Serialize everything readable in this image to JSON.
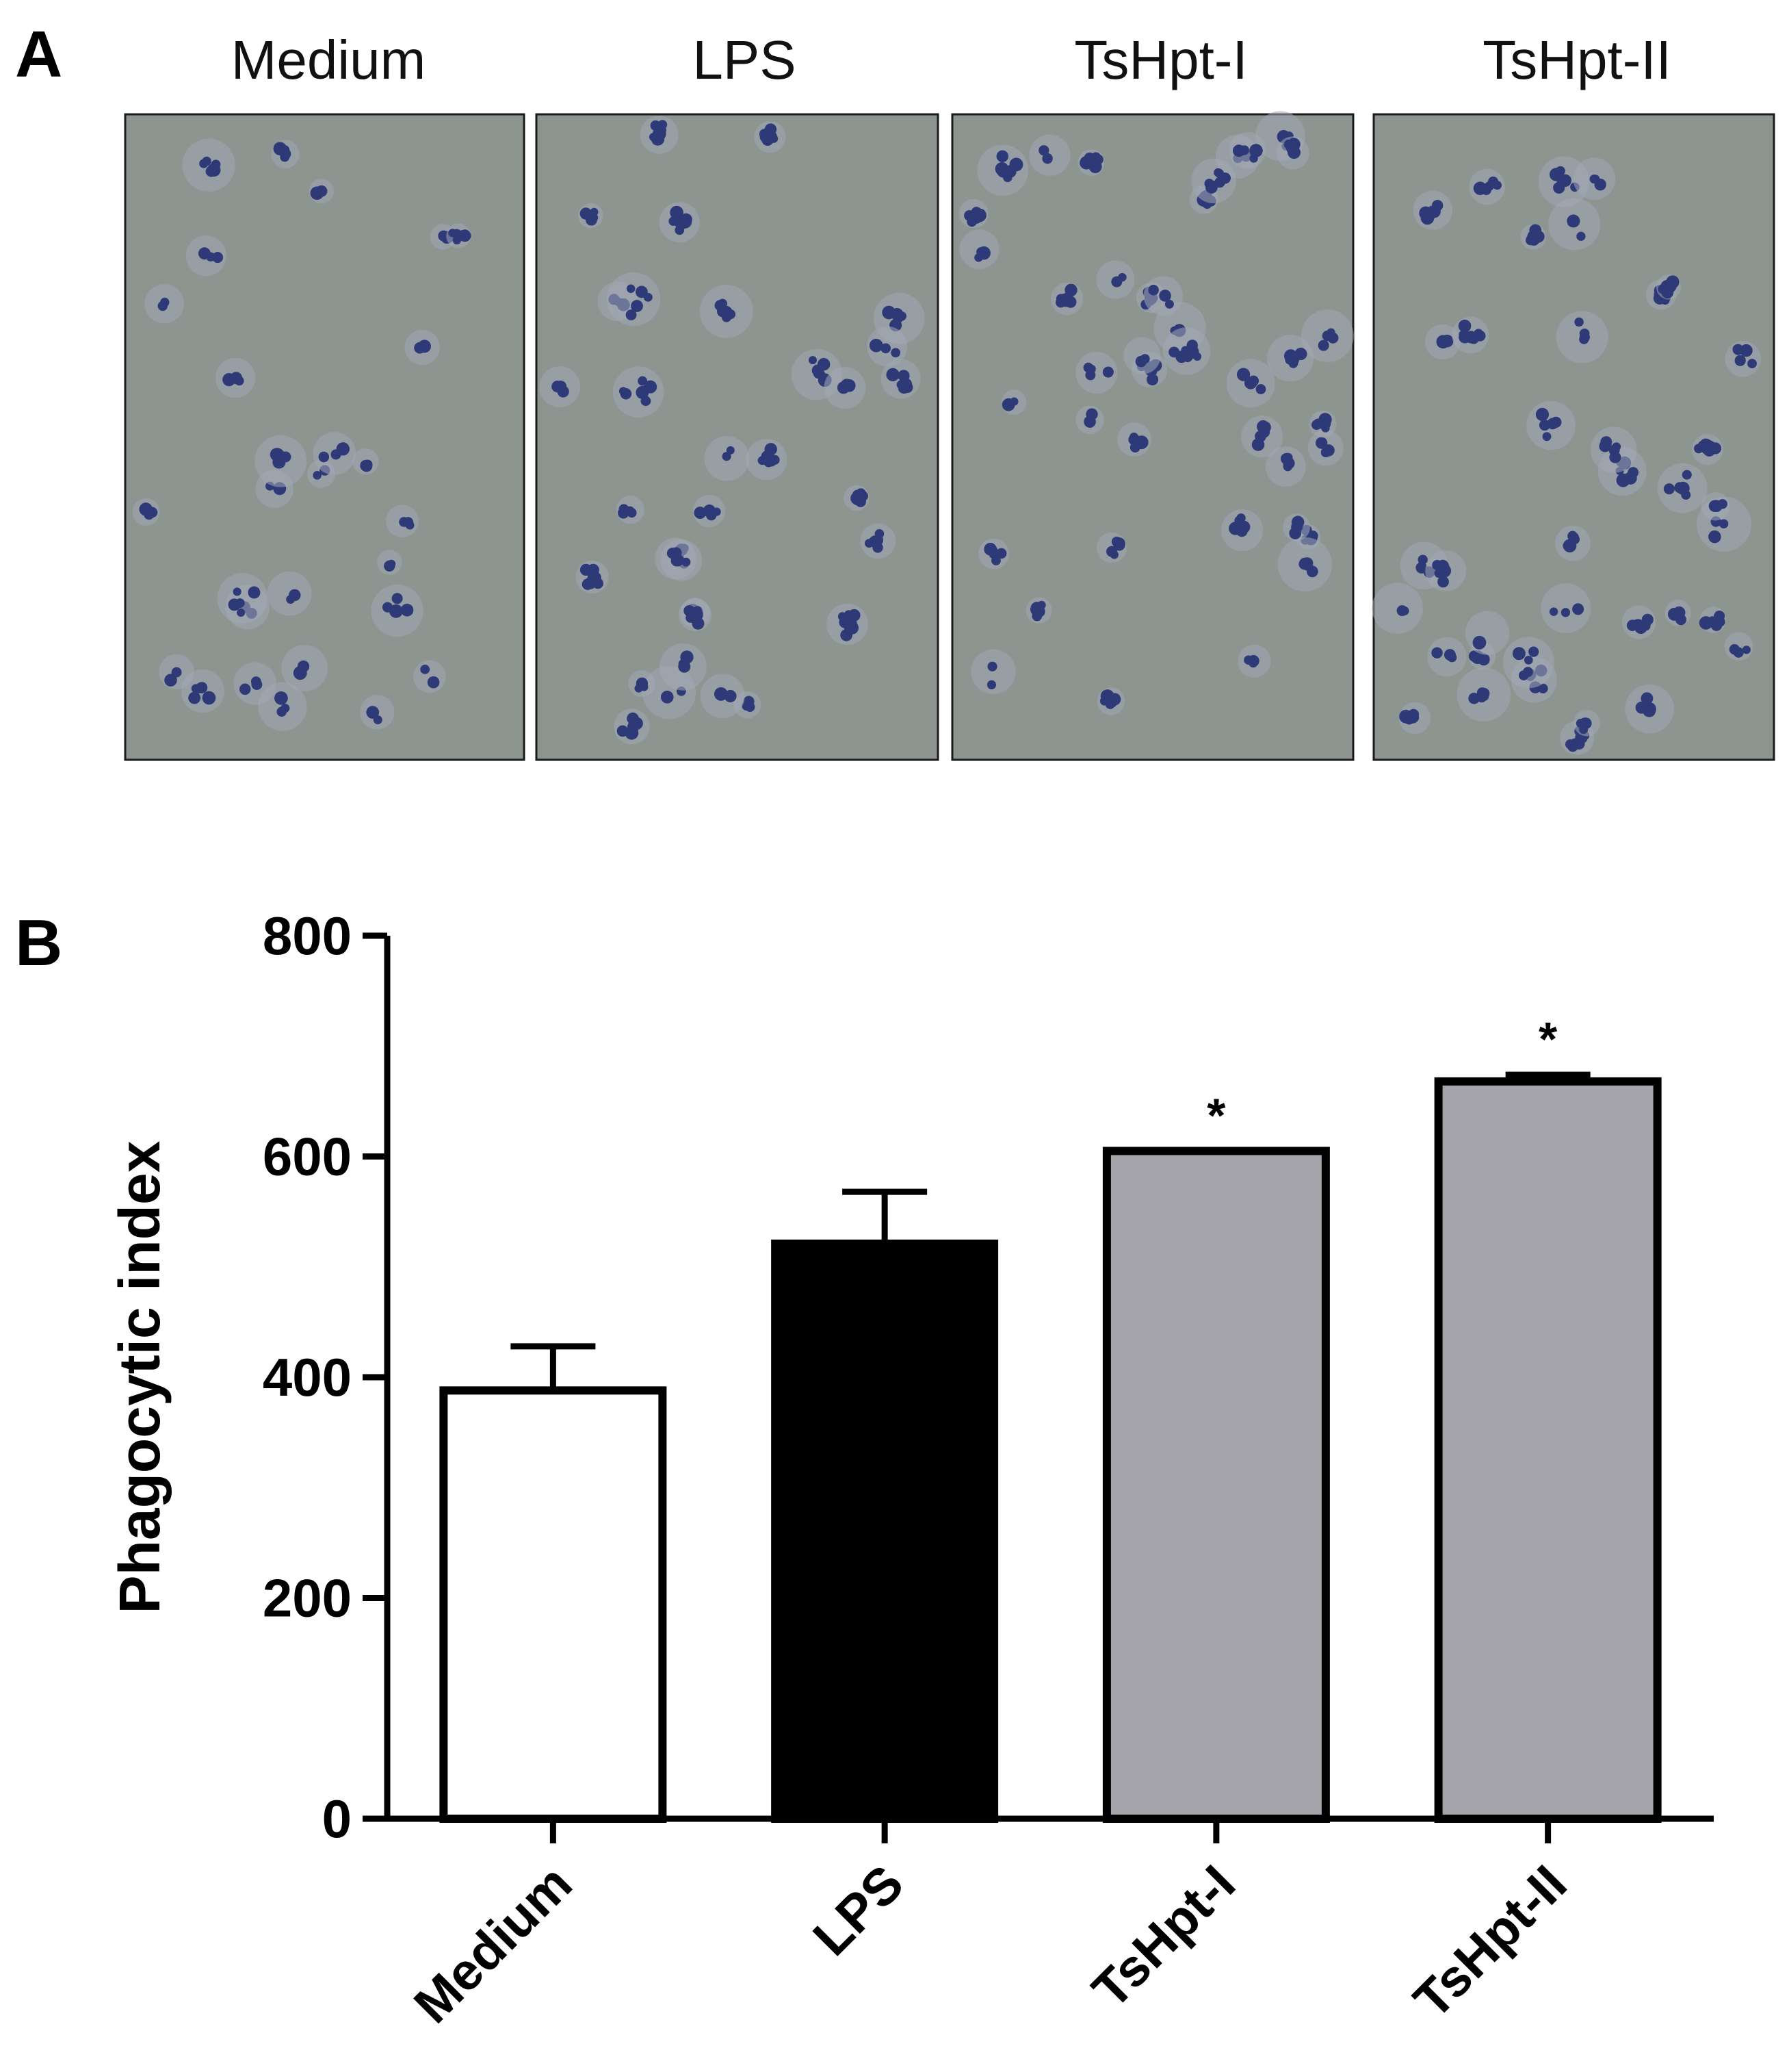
{
  "panels": {
    "a_label": "A",
    "b_label": "B"
  },
  "micrographs": [
    {
      "title": "Medium"
    },
    {
      "title": "LPS"
    },
    {
      "title": "TsHpt-I"
    },
    {
      "title": "TsHpt-II"
    }
  ],
  "colors": {
    "micro_bg": "#8c9590",
    "cell_nucleus": "#2e3a78",
    "cell_body": "#a2a8b4",
    "bar_medium": "#ffffff",
    "bar_lps": "#000000",
    "bar_tshpt": "#a4a4aa"
  },
  "chart_data": {
    "type": "bar",
    "categories": [
      "Medium",
      "LPS",
      "TsHpt-I",
      "TsHpt-II"
    ],
    "values": [
      388,
      521,
      605,
      668
    ],
    "errors": [
      40,
      47,
      0,
      6
    ],
    "significance": [
      "",
      "",
      "*",
      "*"
    ],
    "ylabel": "Phagocytic index",
    "xlabel": "",
    "ylim": [
      0,
      800
    ],
    "yticks": [
      "0",
      "200",
      "400",
      "600",
      "800"
    ],
    "grid": false
  }
}
